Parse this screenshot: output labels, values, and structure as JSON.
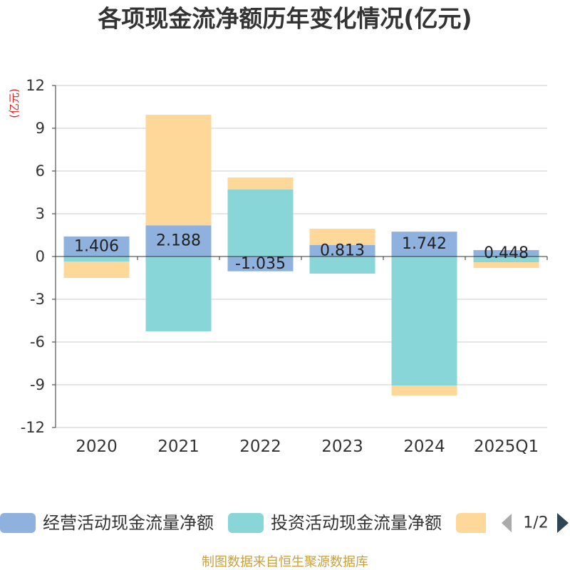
{
  "chart_data": {
    "type": "bar",
    "stacked": true,
    "title": "各项现金流净额历年变化情况(亿元)",
    "ylabel": "(亿元)",
    "categories": [
      "2020",
      "2021",
      "2022",
      "2023",
      "2024",
      "2025Q1"
    ],
    "ylim": [
      -12,
      12
    ],
    "yticks": [
      12,
      9,
      6,
      3,
      0,
      -3,
      -6,
      -9,
      -12
    ],
    "grid": true,
    "legend_position": "bottom",
    "series": [
      {
        "name": "经营活动现金流量净额",
        "color": "#8eb1dd",
        "show_labels": true,
        "values": [
          1.406,
          2.188,
          -1.035,
          0.813,
          1.742,
          0.448
        ]
      },
      {
        "name": "投资活动现金流量净额",
        "color": "#88d6d8",
        "values": [
          -0.35,
          -5.25,
          4.7,
          -1.2,
          -9.05,
          -0.4
        ]
      },
      {
        "color": "#fdd899",
        "values": [
          -1.15,
          7.76,
          0.85,
          1.14,
          -0.7,
          -0.4
        ]
      }
    ]
  },
  "legend": {
    "page": "1/2",
    "prev_icon": "triangle-left-icon",
    "prev_color": "#aaaaaa",
    "next_icon": "triangle-right-icon",
    "next_color": "#2f4554"
  },
  "footer": "制图数据来自恒生聚源数据库",
  "colors": {
    "text": "#333333",
    "axis": "#333333",
    "grid": "#cccccc",
    "unit_label": "#dd2222",
    "footer": "#c9a040"
  }
}
